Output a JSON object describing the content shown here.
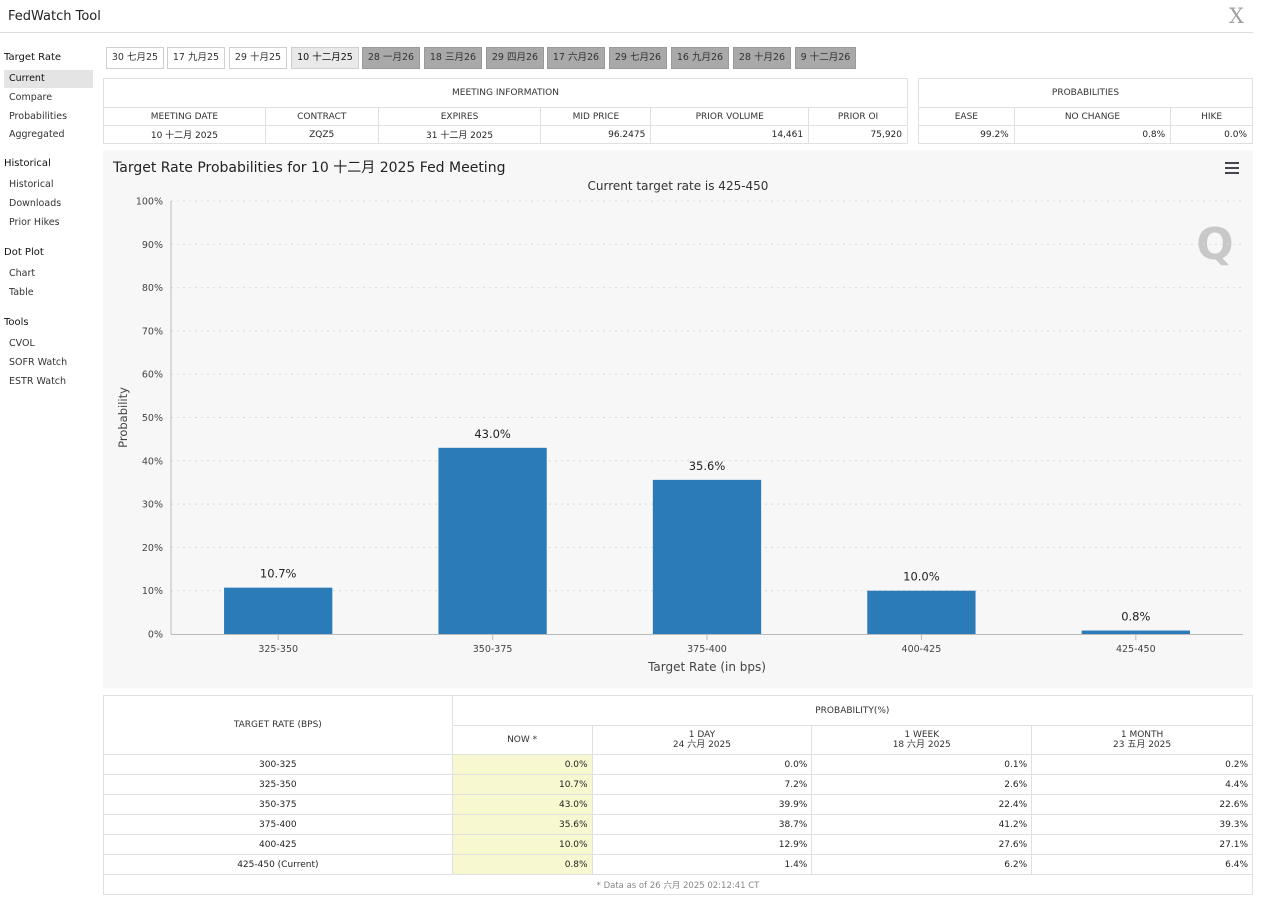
{
  "app_title": "FedWatch Tool",
  "close_label": "X",
  "sidebar": {
    "sections": [
      {
        "title": "Target Rate",
        "items": [
          "Current",
          "Compare",
          "Probabilities",
          "Aggregated"
        ]
      },
      {
        "title": "Historical",
        "items": [
          "Historical",
          "Downloads",
          "Prior Hikes"
        ]
      },
      {
        "title": "Dot Plot",
        "items": [
          "Chart",
          "Table"
        ]
      },
      {
        "title": "Tools",
        "items": [
          "CVOL",
          "SOFR Watch",
          "ESTR Watch"
        ]
      }
    ]
  },
  "meeting_tabs": [
    "30 七月25",
    "17 九月25",
    "29 十月25",
    "10 十二月25",
    "28 一月26",
    "18 三月26",
    "29 四月26",
    "17 六月26",
    "29 七月26",
    "16 九月26",
    "28 十月26",
    "9 十二月26"
  ],
  "meeting_info": {
    "title": "MEETING INFORMATION",
    "headers": [
      "MEETING DATE",
      "CONTRACT",
      "EXPIRES",
      "MID PRICE",
      "PRIOR VOLUME",
      "PRIOR OI"
    ],
    "values": [
      "10 十二月 2025",
      "ZQZ5",
      "31 十二月 2025",
      "96.2475",
      "14,461",
      "75,920"
    ]
  },
  "probabilities": {
    "title": "PROBABILITIES",
    "headers": [
      "EASE",
      "NO CHANGE",
      "HIKE"
    ],
    "values": [
      "99.2%",
      "0.8%",
      "0.0%"
    ]
  },
  "chart": {
    "title": "Target Rate Probabilities for 10 十二月 2025 Fed Meeting",
    "subtitle": "Current target rate is 425-450",
    "watermark": "Q",
    "bar_color": "#2b7bb9"
  },
  "chart_data": {
    "type": "bar",
    "title": "Target Rate Probabilities for 10 十二月 2025 Fed Meeting",
    "subtitle": "Current target rate is 425-450",
    "categories": [
      "325-350",
      "350-375",
      "375-400",
      "400-425",
      "425-450"
    ],
    "values": [
      10.7,
      43.0,
      35.6,
      10.0,
      0.8
    ],
    "data_labels": [
      "10.7%",
      "43.0%",
      "35.6%",
      "10.0%",
      "0.8%"
    ],
    "xlabel": "Target Rate (in bps)",
    "ylabel": "Probability",
    "ylim": [
      0,
      100
    ],
    "yticks": [
      "0%",
      "10%",
      "20%",
      "30%",
      "40%",
      "50%",
      "60%",
      "70%",
      "80%",
      "90%",
      "100%"
    ],
    "grid": true
  },
  "rate_table": {
    "target_header": "TARGET RATE (BPS)",
    "prob_header": "PROBABILITY(%)",
    "columns": [
      {
        "label": "NOW *",
        "sub": ""
      },
      {
        "label": "1 DAY",
        "sub": "24 六月 2025"
      },
      {
        "label": "1 WEEK",
        "sub": "18 六月 2025"
      },
      {
        "label": "1 MONTH",
        "sub": "23 五月 2025"
      }
    ],
    "rows": [
      [
        "300-325",
        "0.0%",
        "0.0%",
        "0.1%",
        "0.2%"
      ],
      [
        "325-350",
        "10.7%",
        "7.2%",
        "2.6%",
        "4.4%"
      ],
      [
        "350-375",
        "43.0%",
        "39.9%",
        "22.4%",
        "22.6%"
      ],
      [
        "375-400",
        "35.6%",
        "38.7%",
        "41.2%",
        "39.3%"
      ],
      [
        "400-425",
        "10.0%",
        "12.9%",
        "27.6%",
        "27.1%"
      ],
      [
        "425-450 (Current)",
        "0.8%",
        "1.4%",
        "6.2%",
        "6.4%"
      ]
    ],
    "footnote": "* Data as of 26 六月 2025 02:12:41 CT"
  }
}
